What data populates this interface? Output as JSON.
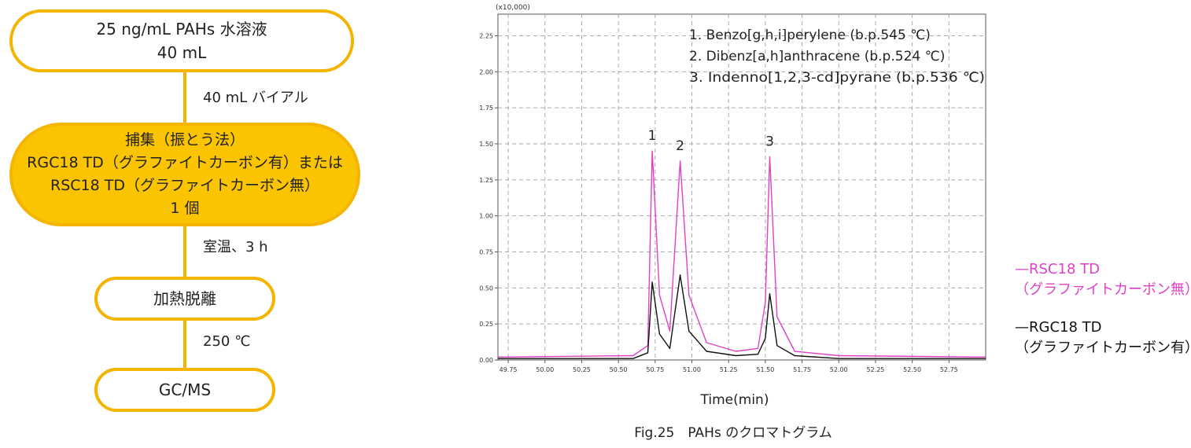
{
  "flowchart": {
    "step1": {
      "line1": "25 ng/mL PAHs 水溶液",
      "line2": "40 mL"
    },
    "arrow1": "40 mL バイアル",
    "step2": {
      "line1": "捕集（振とう法）",
      "line2": "RGC18 TD（グラファイトカーボン有）または",
      "line3": "RSC18 TD（グラファイトカーボン無）",
      "line4": "1 個"
    },
    "arrow2": "室温、3 h",
    "step3": "加熱脱離",
    "arrow3": "250 ℃",
    "step4": "GC/MS"
  },
  "chart_data": {
    "type": "line",
    "title": "",
    "xlabel": "Time(min)",
    "ylabel": "",
    "y_multiplier": "(x10,000)",
    "xlim": [
      49.68,
      53.0
    ],
    "ylim": [
      0,
      2.4
    ],
    "x_ticks": [
      "49.75",
      "50.00",
      "50.25",
      "50.50",
      "50.75",
      "51.00",
      "51.25",
      "51.50",
      "51.75",
      "52.00",
      "52.25",
      "52.50",
      "52.75"
    ],
    "y_ticks": [
      "0.00",
      "0.25",
      "0.50",
      "0.75",
      "1.00",
      "1.25",
      "1.50",
      "1.75",
      "2.00",
      "2.25"
    ],
    "grid": true,
    "series": [
      {
        "name": "RSC18 TD",
        "color": "#e040c8",
        "x": [
          49.68,
          50.6,
          50.7,
          50.73,
          50.78,
          50.85,
          50.92,
          50.98,
          51.1,
          51.3,
          51.45,
          51.5,
          51.53,
          51.58,
          51.7,
          52.0,
          53.0
        ],
        "y": [
          0.02,
          0.03,
          0.1,
          1.45,
          0.45,
          0.2,
          1.38,
          0.45,
          0.12,
          0.06,
          0.08,
          0.4,
          1.41,
          0.3,
          0.06,
          0.03,
          0.02
        ]
      },
      {
        "name": "RGC18 TD",
        "color": "#111111",
        "x": [
          49.68,
          50.6,
          50.7,
          50.73,
          50.78,
          50.85,
          50.92,
          50.98,
          51.1,
          51.3,
          51.45,
          51.5,
          51.53,
          51.58,
          51.7,
          52.0,
          53.0
        ],
        "y": [
          0.01,
          0.01,
          0.05,
          0.54,
          0.18,
          0.08,
          0.59,
          0.2,
          0.06,
          0.03,
          0.04,
          0.15,
          0.46,
          0.1,
          0.03,
          0.01,
          0.01
        ]
      }
    ],
    "peaks": [
      {
        "label": "1",
        "x": 50.73,
        "y": 1.45
      },
      {
        "label": "2",
        "x": 50.92,
        "y": 1.38
      },
      {
        "label": "3",
        "x": 51.53,
        "y": 1.41
      }
    ],
    "annotations": [
      "1. Benzo[g,h,i]perylene  (b.p.545 ℃)",
      "2. Dibenz[a,h]anthracene (b.p.524 ℃)",
      "3. Indenno[1,2,3-cd]pyrane (b.p.536 ℃)"
    ],
    "caption": "Fig.25　PAHs のクロマトグラム"
  },
  "legend": {
    "rsc_line1": "—RSC18 TD",
    "rsc_line2": "（グラファイトカーボン無）",
    "rgc_line1": "—RGC18 TD",
    "rgc_line2": "（グラファイトカーボン有）",
    "rsc_color": "#e040c8",
    "rgc_color": "#111111"
  }
}
